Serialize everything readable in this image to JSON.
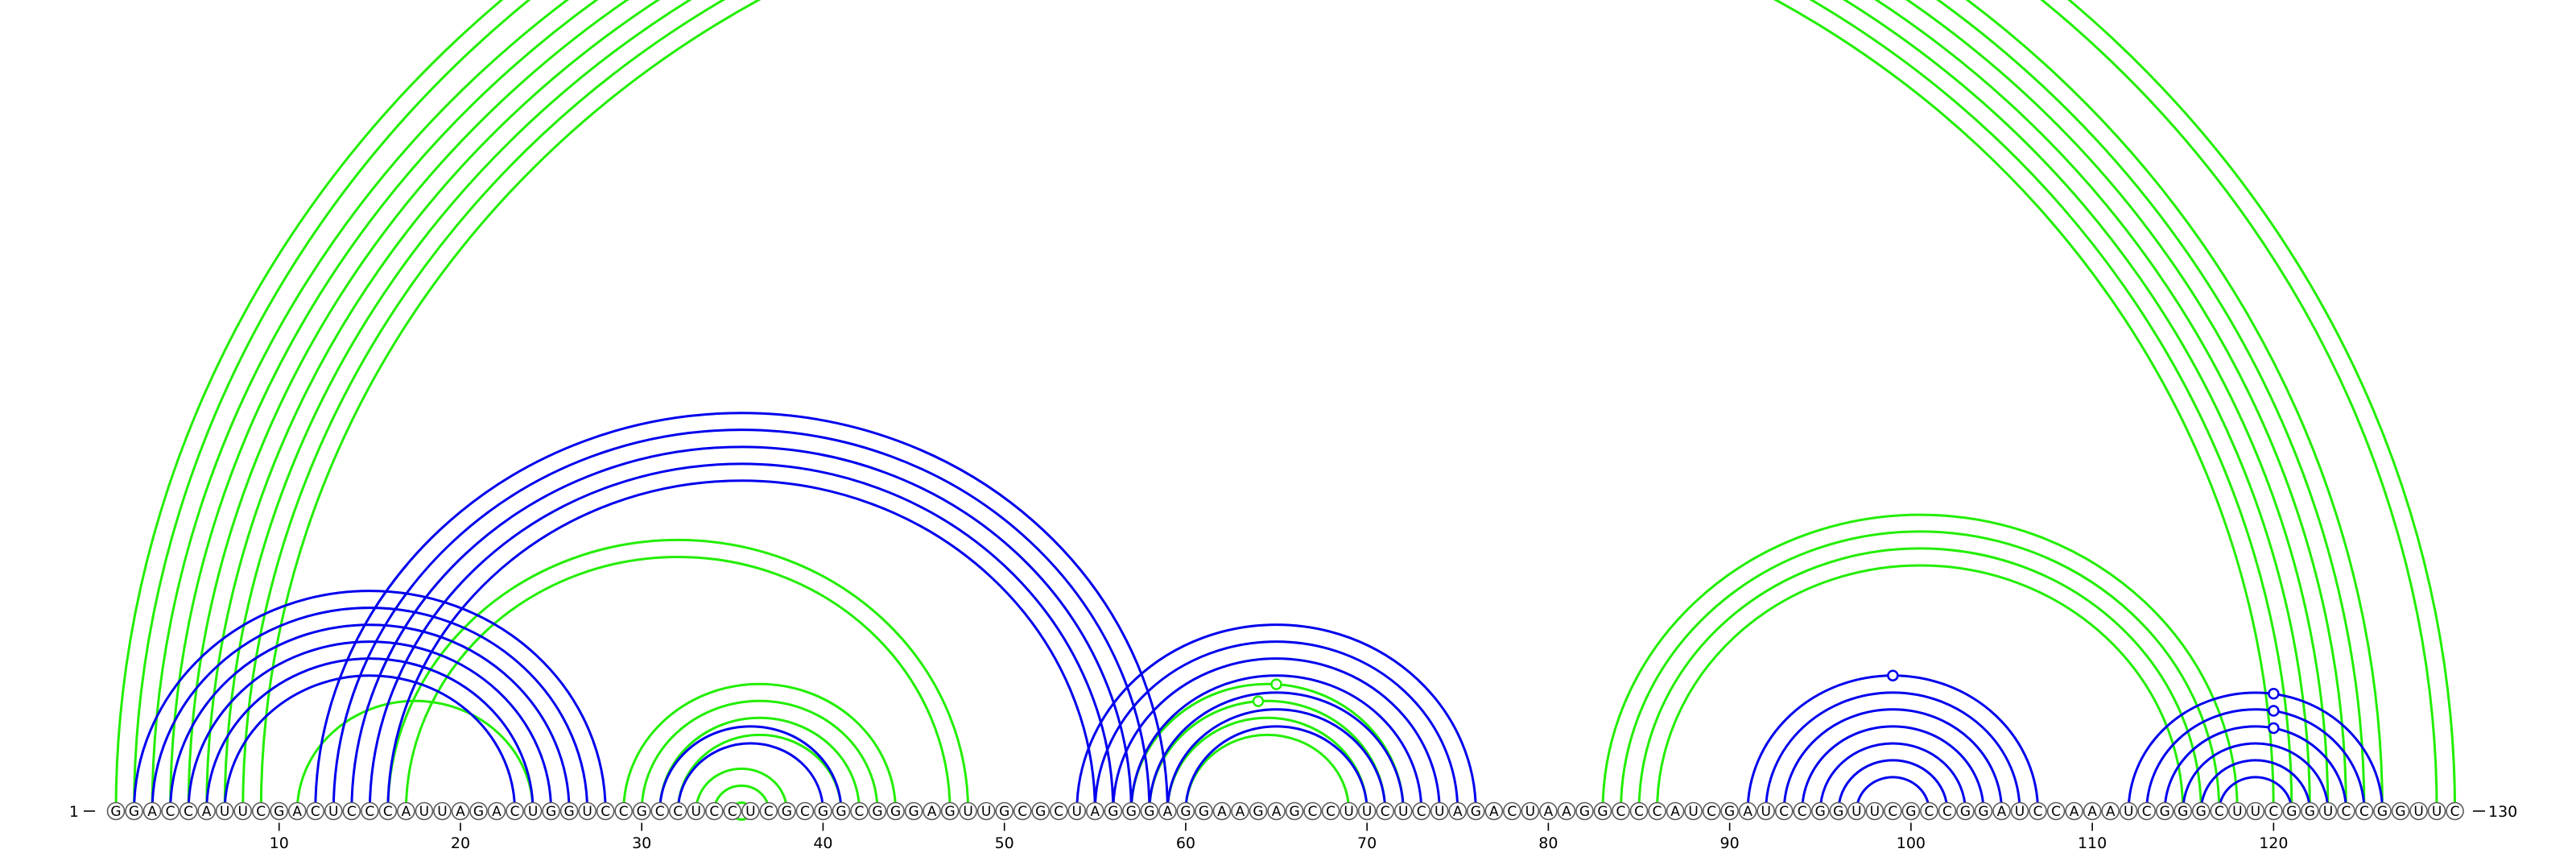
{
  "sequence": "GGACCAUUCGACUCCCAUUAGACUGGUCCGCCUCCUCGCGGCGGGAGUUGCGCUAGGGAGGAAGAGCCUUCUCUAGACUAAGGCCCAUCGAUCCGGUUCGCCGGAUCCAAAUCGGGCUUCGGUCCGGUUC",
  "start_label": "1",
  "end_label": "130",
  "ticks": [
    "10",
    "20",
    "30",
    "40",
    "50",
    "60",
    "70",
    "80",
    "90",
    "100",
    "110",
    "120"
  ],
  "colors": {
    "blue": "#0000ee",
    "green": "#22ee00"
  },
  "structures": [
    {
      "color": "green",
      "helices": [
        {
          "i": 1,
          "j": 130,
          "n": 2,
          "marker": [
            66
          ]
        },
        {
          "i": 3,
          "j": 126,
          "n": 2
        },
        {
          "i": 5,
          "j": 124,
          "n": 2
        },
        {
          "i": 7,
          "j": 122,
          "n": 1
        },
        {
          "i": 8,
          "j": 121,
          "n": 2
        },
        {
          "i": 11,
          "j": 24,
          "n": 1
        },
        {
          "i": 16,
          "j": 48,
          "n": 2
        },
        {
          "i": 29,
          "j": 44,
          "n": 4
        },
        {
          "i": 33,
          "j": 38,
          "n": 4
        },
        {
          "i": 57,
          "j": 72,
          "n": 4,
          "marker": [
            65,
            64
          ]
        },
        {
          "i": 83,
          "j": 118,
          "n": 4
        }
      ]
    },
    {
      "color": "blue",
      "helices": [
        {
          "i": 2,
          "j": 28,
          "n": 6
        },
        {
          "i": 12,
          "j": 59,
          "n": 5
        },
        {
          "i": 31,
          "j": 41,
          "n": 2
        },
        {
          "i": 54,
          "j": 76,
          "n": 7
        },
        {
          "i": 91,
          "j": 107,
          "n": 7,
          "marker": [
            99
          ]
        },
        {
          "i": 112,
          "j": 126,
          "n": 6,
          "marker": [
            120,
            120,
            120
          ]
        }
      ]
    }
  ]
}
